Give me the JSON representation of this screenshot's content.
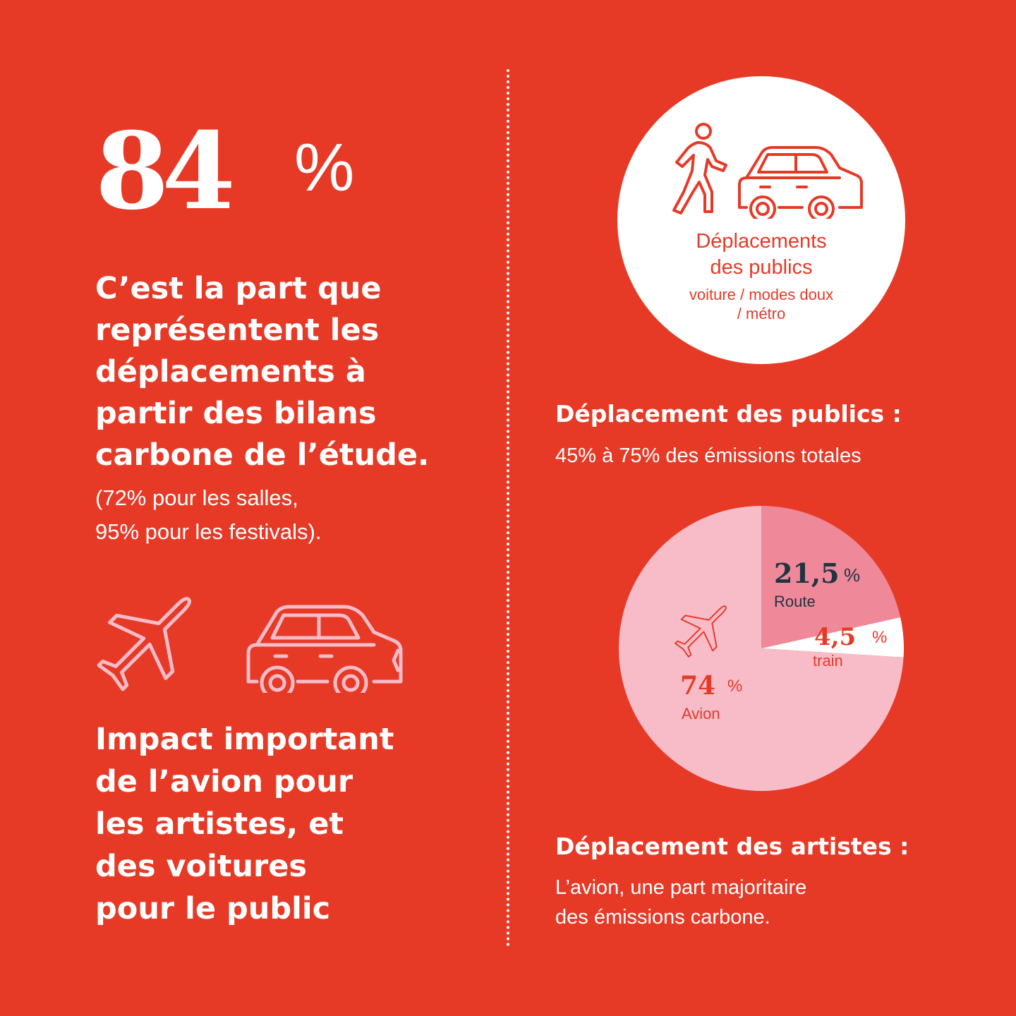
{
  "colors": {
    "background": "#e63a27",
    "white": "#ffffff",
    "pink_light": "#f7bcc8",
    "pink_medium": "#ef8898",
    "dark_label": "#1f3441"
  },
  "left": {
    "big_number": "84",
    "big_percent": "%",
    "headline_lines": [
      "C’est la part que",
      "représentent les",
      "déplacements à",
      "partir des bilans",
      "carbone de l’étude."
    ],
    "sub_lines": [
      "(72% pour les salles,",
      "95% pour les festivals)."
    ],
    "icons": [
      "airplane-icon",
      "car-icon"
    ],
    "impact_lines": [
      "Impact important",
      "de l’avion pour",
      "les artistes, et",
      "des voitures",
      "pour le public"
    ]
  },
  "right": {
    "circle": {
      "icons": [
        "walking-person-icon",
        "car-icon"
      ],
      "title_lines": [
        "Déplacements",
        "des publics"
      ],
      "sub_lines": [
        "voiture / modes doux",
        "/ métro"
      ]
    },
    "publics": {
      "title": "Déplacement des publics :",
      "text": "45% à 75% des émissions totales"
    },
    "artistes": {
      "title": "Déplacement des artistes :",
      "text_lines": [
        "L’avion, une part majoritaire",
        "des émissions carbone."
      ]
    }
  },
  "chart_data": {
    "type": "pie",
    "slices": [
      {
        "label": "Route",
        "value": 21.5,
        "display": "21,5",
        "color": "#ef8898",
        "text_color": "#1f3441"
      },
      {
        "label": "train",
        "value": 4.5,
        "display": "4,5",
        "color": "#ffffff",
        "text_color": "#e63a27"
      },
      {
        "label": "Avion",
        "value": 74,
        "display": "74",
        "color": "#f7bcc8",
        "text_color": "#e63a27"
      }
    ],
    "unit": "%"
  }
}
